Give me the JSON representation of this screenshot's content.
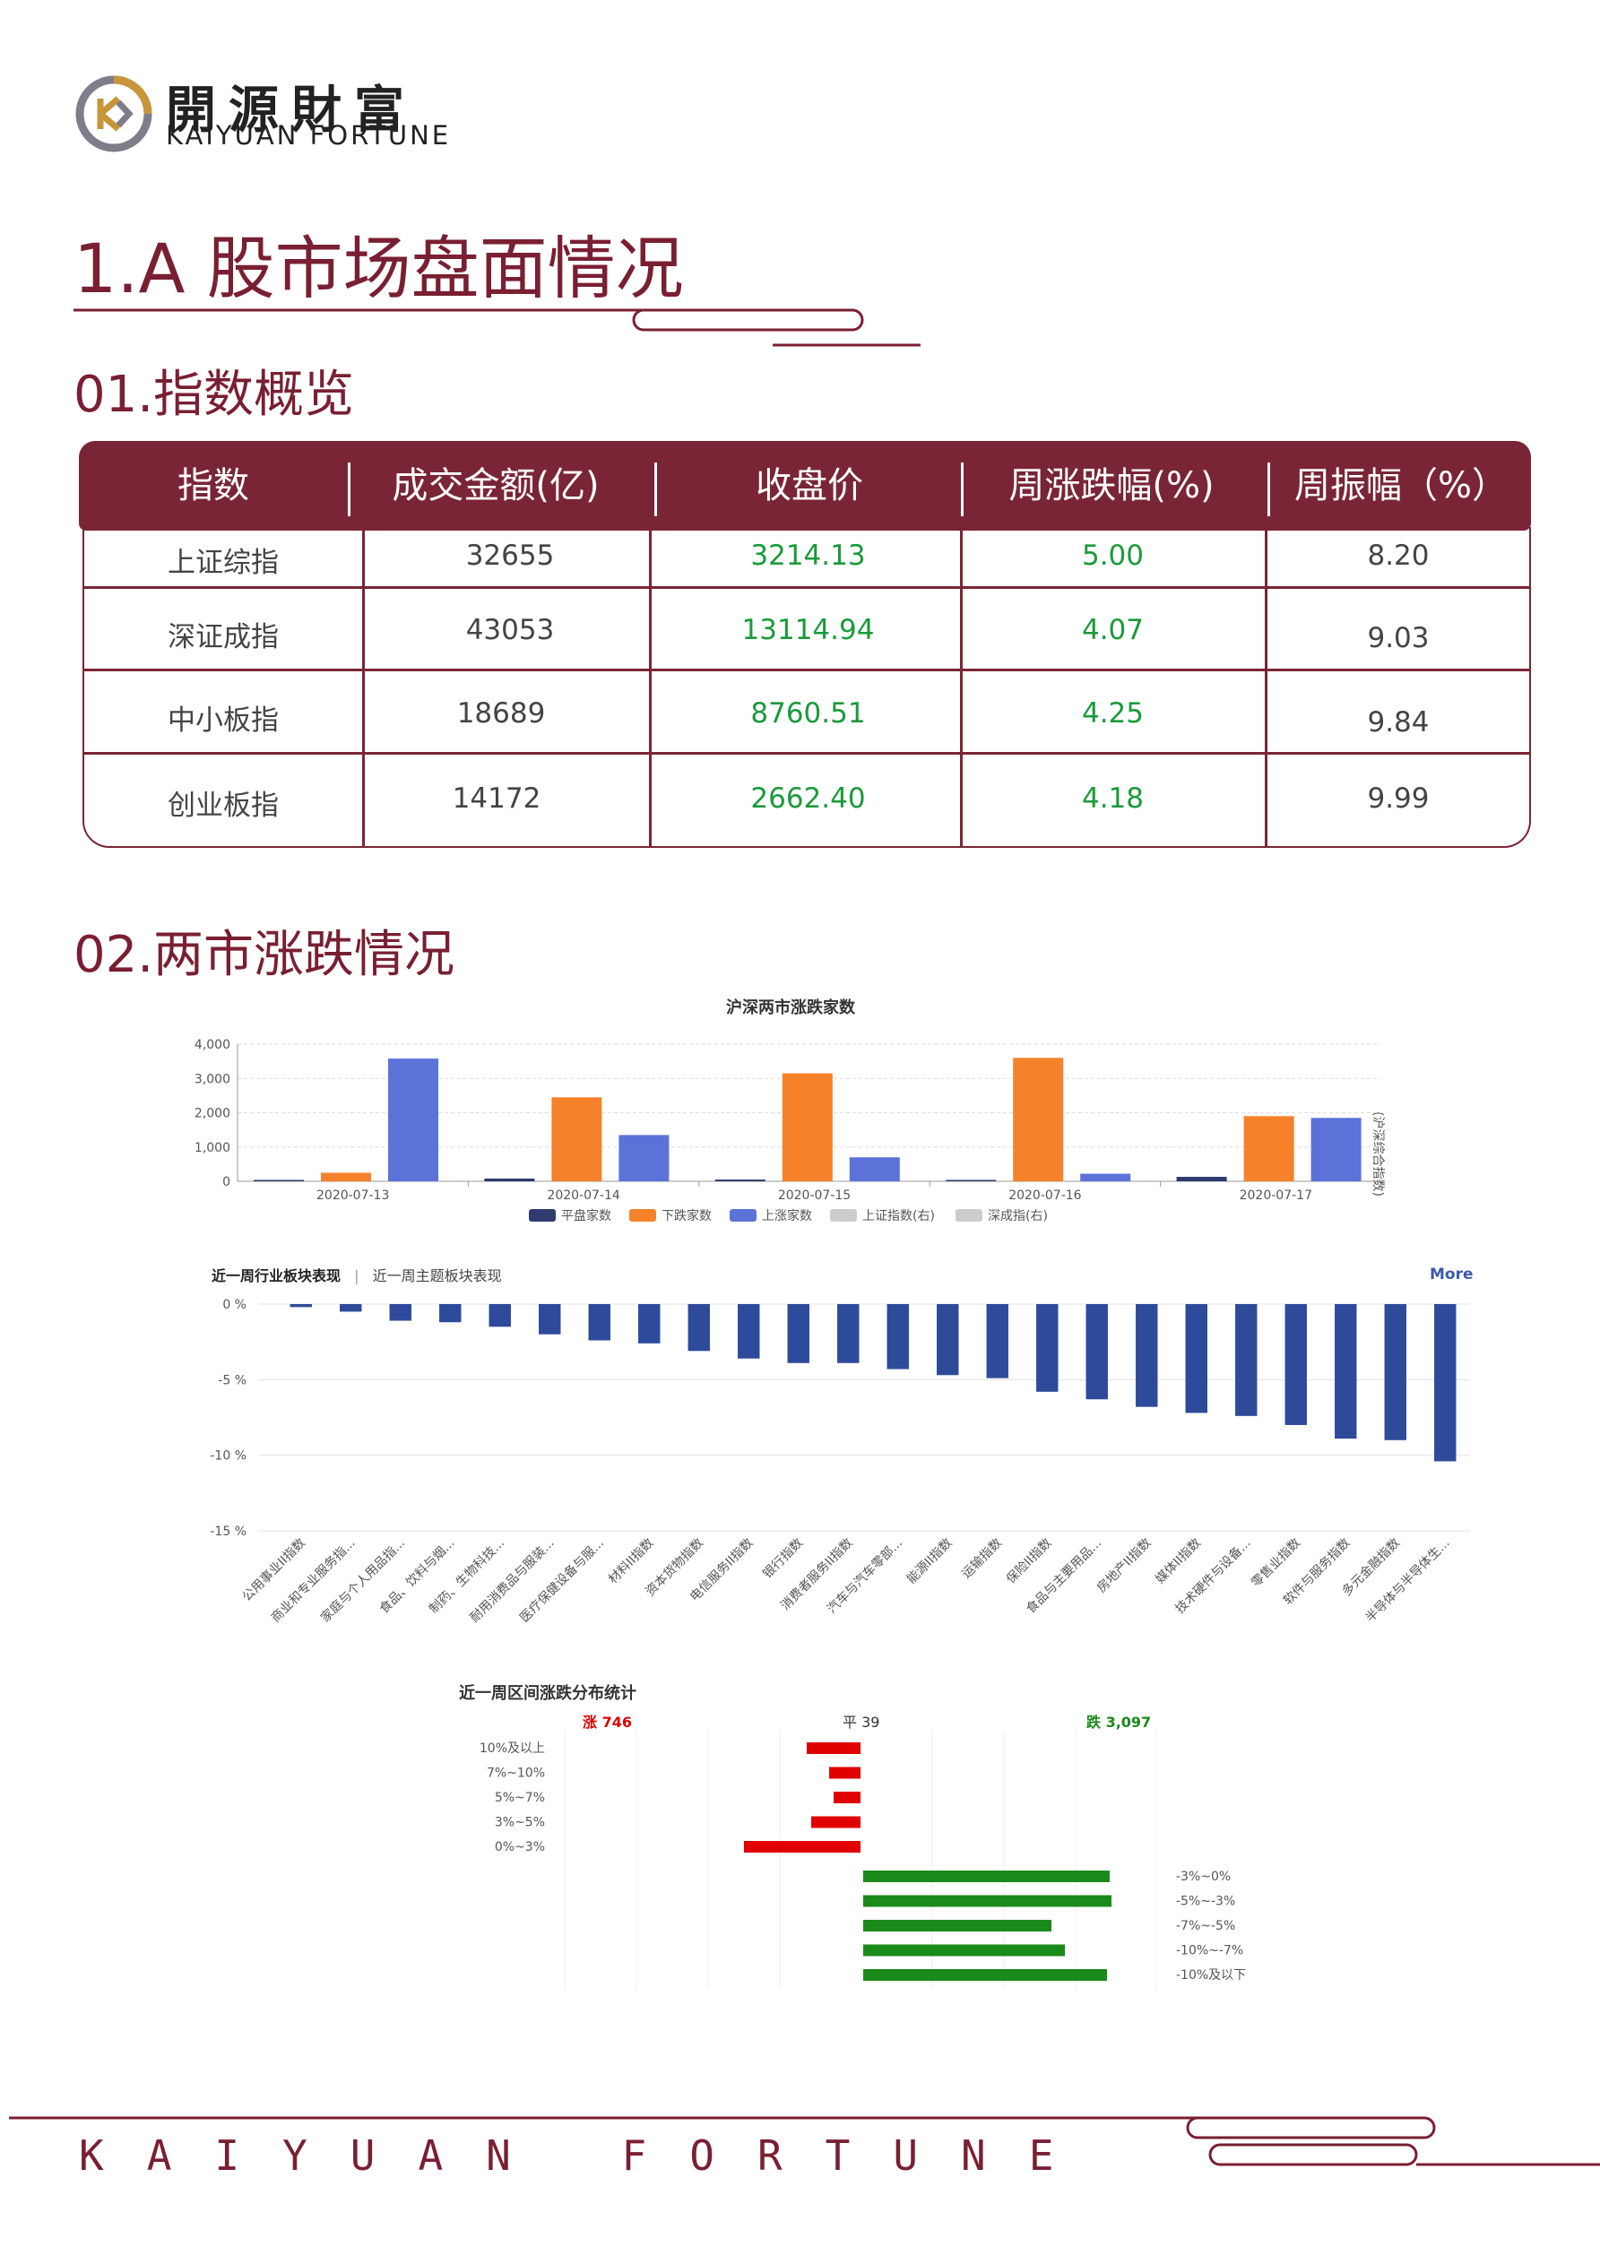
{
  "header": {
    "logo_cn": "開源財富",
    "logo_en": "KAIYUAN FORTUNE"
  },
  "section": {
    "title": "1.A 股市场盘面情况",
    "sub1": "01.指数概览",
    "sub2": "02.两市涨跌情况"
  },
  "index_table": {
    "headers": [
      "指数",
      "成交金额(亿)",
      "收盘价",
      "周涨跌幅(%)",
      "周振幅（%）"
    ],
    "rows": [
      [
        "上证综指",
        "32655",
        "3214.13",
        "5.00",
        "8.20"
      ],
      [
        "深证成指",
        "43053",
        "13114.94",
        "4.07",
        "9.03"
      ],
      [
        "中小板指",
        "18689",
        "8760.51",
        "4.25",
        "9.84"
      ],
      [
        "创业板指",
        "14172",
        "2662.40",
        "4.18",
        "9.99"
      ]
    ]
  },
  "chart_data": [
    {
      "type": "bar",
      "title": "沪深两市涨跌家数",
      "categories": [
        "2020-07-13",
        "2020-07-14",
        "2020-07-15",
        "2020-07-16",
        "2020-07-17"
      ],
      "series": [
        {
          "name": "平盘家数",
          "color": "#2f3b6e",
          "values": [
            40,
            80,
            50,
            40,
            130
          ]
        },
        {
          "name": "下跌家数",
          "color": "#f5822a",
          "values": [
            250,
            2450,
            3150,
            3600,
            1900
          ]
        },
        {
          "name": "上涨家数",
          "color": "#5b73d9",
          "values": [
            3580,
            1350,
            700,
            220,
            1850
          ]
        }
      ],
      "legend_extra": [
        "上证指数(右)",
        "深成指(右)"
      ],
      "right_axis_label": "(沪深综合指数)",
      "y_ticks": [
        "4,000",
        "3,000",
        "2,000",
        "1,000",
        "0"
      ],
      "ylim": [
        0,
        4000
      ]
    },
    {
      "type": "bar",
      "tabs": [
        "近一周行业板块表现",
        "近一周主题板块表现"
      ],
      "more_label": "More",
      "y_ticks": [
        "0 %",
        "-5 %",
        "-10 %",
        "-15 %"
      ],
      "ylim": [
        -15,
        0
      ],
      "color": "#2e4a9a",
      "categories": [
        "公用事业II指数",
        "商业和专业服务指...",
        "家庭与个人用品指...",
        "食品、饮料与烟...",
        "制药、生物科技...",
        "耐用消费品与服装...",
        "医疗保健设备与服...",
        "材料II指数",
        "资本货物指数",
        "电信服务II指数",
        "银行指数",
        "消费者服务II指数",
        "汽车与汽车零部...",
        "能源II指数",
        "运输指数",
        "保险II指数",
        "食品与主要用品...",
        "房地产II指数",
        "媒体II指数",
        "技术硬件与设备...",
        "零售业指数",
        "软件与服务指数",
        "多元金融指数",
        "半导体与半导体生..."
      ],
      "values": [
        -0.2,
        -0.5,
        -1.1,
        -1.2,
        -1.5,
        -2.0,
        -2.4,
        -2.6,
        -3.1,
        -3.6,
        -3.9,
        -3.9,
        -4.3,
        -4.7,
        -4.9,
        -5.8,
        -6.3,
        -6.8,
        -7.2,
        -7.4,
        -8.0,
        -8.9,
        -9.0,
        -10.4
      ]
    },
    {
      "type": "bar",
      "title": "近一周区间涨跌分布统计",
      "summary": {
        "up": "涨 746",
        "flat": "平 39",
        "down": "跌 3,097"
      },
      "up_categories": [
        "10%及以上",
        "7%~10%",
        "5%~7%",
        "3%~5%",
        "0%~3%"
      ],
      "up_values": [
        60,
        35,
        30,
        55,
        130
      ],
      "up_color": "#e00000",
      "down_categories": [
        "-3%~0%",
        "-5%~-3%",
        "-7%~-5%",
        "-10%~-7%",
        "-10%及以下"
      ],
      "down_values": [
        275,
        277,
        210,
        225,
        272
      ],
      "down_color": "#1a8a1a"
    }
  ],
  "footer": {
    "text": "KAIYUAN FORTUNE"
  }
}
